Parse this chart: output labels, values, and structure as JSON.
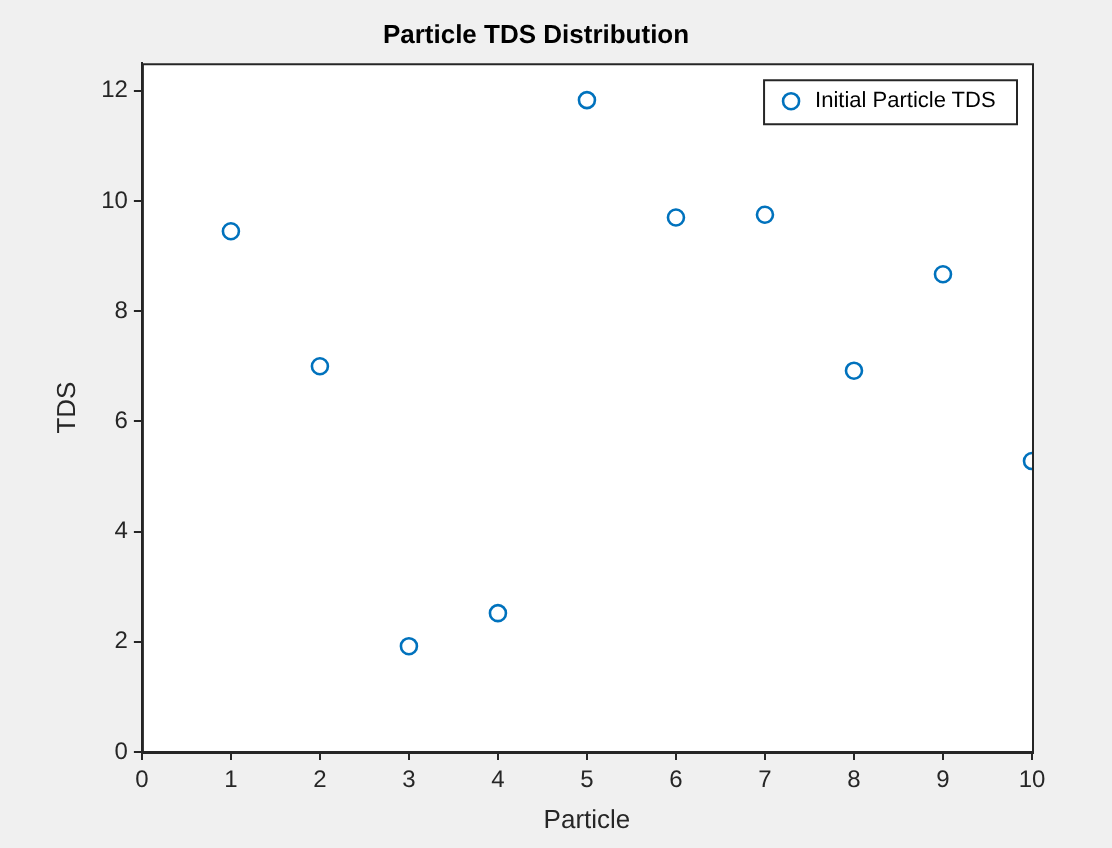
{
  "chart_data": {
    "type": "scatter",
    "title": "Particle TDS Distribution",
    "xlabel": "Particle",
    "ylabel": "TDS",
    "x": [
      1,
      2,
      3,
      4,
      5,
      6,
      7,
      8,
      9,
      10
    ],
    "series": [
      {
        "name": "Initial Particle TDS",
        "color": "#0072bd",
        "values": [
          9.45,
          7.0,
          1.92,
          2.52,
          11.83,
          9.7,
          9.75,
          6.92,
          8.67,
          5.28
        ]
      }
    ],
    "xlim": [
      0,
      10
    ],
    "xticks": [
      0,
      1,
      2,
      3,
      4,
      5,
      6,
      7,
      8,
      9,
      10
    ],
    "ylim": [
      0,
      12.5
    ],
    "yticks": [
      0,
      2,
      4,
      6,
      8,
      10,
      12
    ],
    "grid": false,
    "legend": "top right",
    "marker": "circle"
  }
}
